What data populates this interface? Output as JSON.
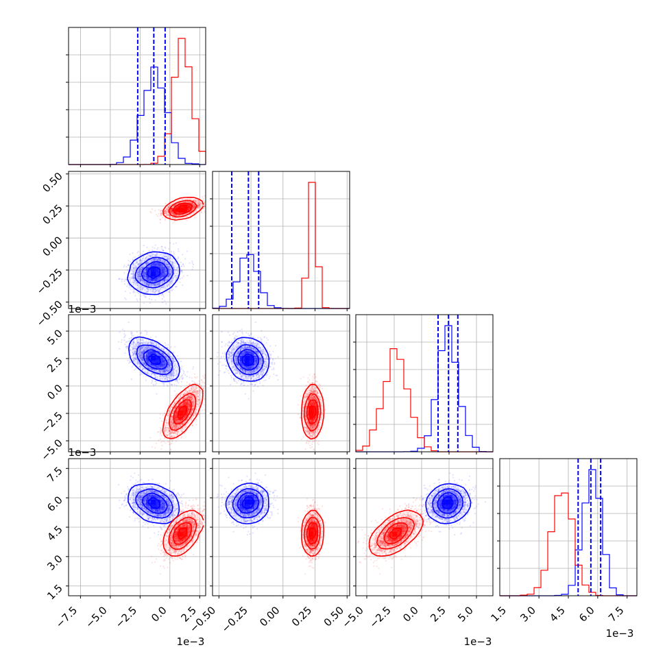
{
  "chart_data": {
    "type": "corner",
    "description_free": true,
    "n_params": 4,
    "grid": true,
    "series": [
      {
        "color": "#0000ff",
        "means": [
          -0.0013,
          -0.00027,
          0.0024,
          0.0057
        ],
        "stds": [
          0.001,
          7.5e-05,
          0.0009,
          0.00045
        ],
        "correlations": [
          [
            1,
            0.15,
            -0.55,
            -0.3
          ],
          [
            0.15,
            1,
            -0.1,
            0.05
          ],
          [
            -0.55,
            -0.1,
            1,
            0.1
          ],
          [
            -0.3,
            0.05,
            0.1,
            1
          ]
        ],
        "quantiles": [
          [
            -0.0027,
            -0.00135,
            -0.0004
          ],
          [
            -0.0004,
            -0.00027,
            -0.00019
          ],
          [
            0.0015,
            0.00245,
            0.0033
          ],
          [
            0.005,
            0.00565,
            0.00615
          ]
        ]
      },
      {
        "color": "#ff0000",
        "means": [
          0.0011,
          0.00023,
          -0.0023,
          0.0042
        ],
        "stds": [
          0.00075,
          3e-05,
          0.00115,
          0.00055
        ],
        "correlations": [
          [
            1,
            0.55,
            0.7,
            0.55
          ],
          [
            0.55,
            1,
            0.1,
            0.1
          ],
          [
            0.7,
            0.1,
            1,
            0.6
          ],
          [
            0.55,
            0.1,
            0.6,
            1
          ]
        ]
      }
    ],
    "ranges": [
      [
        -0.0085,
        0.003
      ],
      [
        -0.00055,
        0.00052
      ],
      [
        -0.006,
        0.0065
      ],
      [
        0.001,
        0.008
      ]
    ],
    "ticks": [
      {
        "values": [
          -0.0075,
          -0.005,
          -0.0025,
          0.0,
          0.0025
        ],
        "labels": [
          "−7.5",
          "−5.0",
          "−2.5",
          "0.0",
          "2.5"
        ]
      },
      {
        "values": [
          -0.0005,
          -0.00025,
          0.0,
          0.00025,
          0.0005
        ],
        "labels": [
          "−0.50",
          "−0.25",
          "0.00",
          "0.25",
          "0.50"
        ]
      },
      {
        "values": [
          -0.005,
          -0.0025,
          0.0,
          0.0025,
          0.005
        ],
        "labels": [
          "−5.0",
          "−2.5",
          "0.0",
          "2.5",
          "5.0"
        ]
      },
      {
        "values": [
          0.0015,
          0.003,
          0.0045,
          0.006,
          0.0075
        ],
        "labels": [
          "1.5",
          "3.0",
          "4.5",
          "6.0",
          "7.5"
        ]
      }
    ],
    "offset_text": "1e−3"
  }
}
